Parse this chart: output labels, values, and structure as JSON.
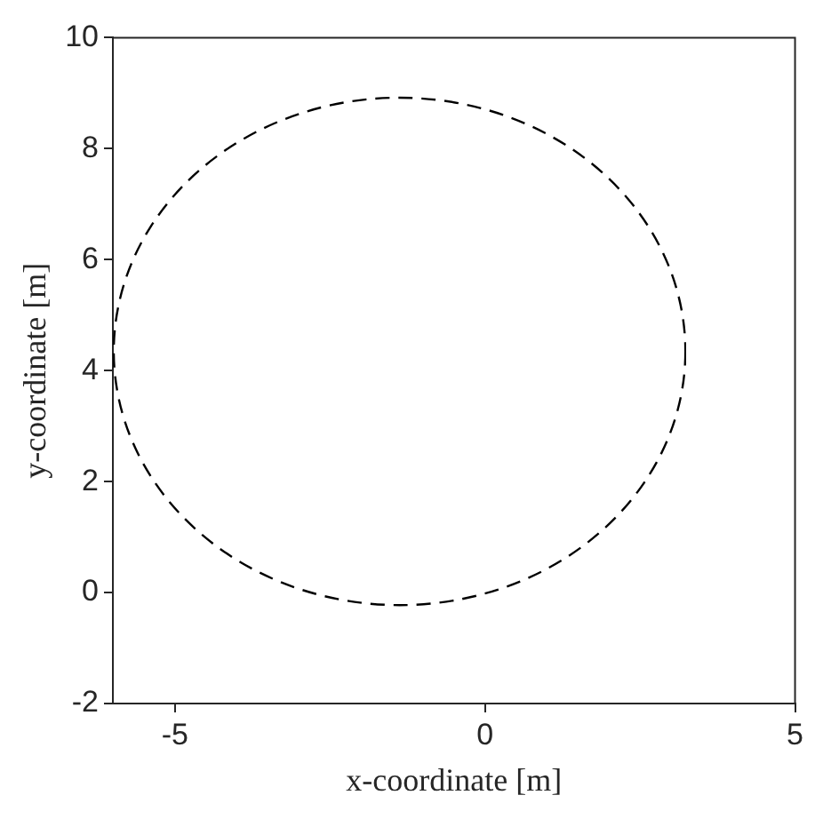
{
  "chart_data": {
    "type": "line",
    "xlabel": "x-coordinate [m]",
    "ylabel": "y-coordinate [m]",
    "xlim": [
      -6,
      5
    ],
    "xticks": [
      -5,
      0,
      5
    ],
    "ylim": [
      -2,
      10
    ],
    "yticks": [
      -2,
      0,
      2,
      4,
      6,
      8,
      10
    ],
    "grid": false,
    "legend": false
  }
}
